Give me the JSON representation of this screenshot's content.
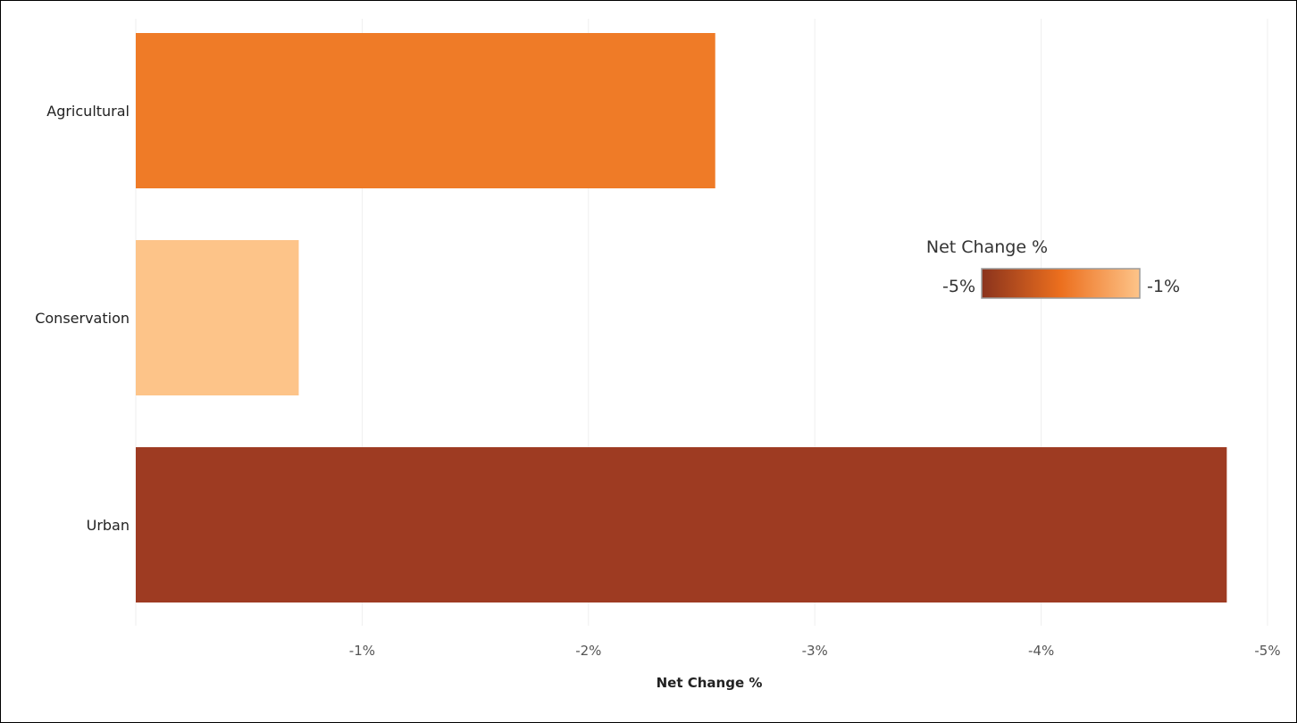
{
  "chart_data": {
    "type": "bar",
    "orientation": "horizontal",
    "categories": [
      "Agricultural",
      "Conservation",
      "Urban"
    ],
    "values": [
      -2.56,
      -0.72,
      -4.82
    ],
    "xlabel": "Net Change %",
    "ylabel": "",
    "xlim": [
      0,
      -5
    ],
    "x_ticks": [
      -1,
      -2,
      -3,
      -4,
      -5
    ],
    "x_tick_labels": [
      "-1%",
      "-2%",
      "-3%",
      "-4%",
      "-5%"
    ],
    "grid": "vertical",
    "colors": {
      "Agricultural": "#ef7b27",
      "Conservation": "#fdc489",
      "Urban": "#9e3b22"
    },
    "legend": {
      "title": "Net Change %",
      "type": "color-gradient",
      "placement": "right",
      "min_label": "-5%",
      "max_label": "-1%",
      "gradient_colors": [
        "#8a331d",
        "#ec6f1e",
        "#fdc489"
      ]
    }
  }
}
